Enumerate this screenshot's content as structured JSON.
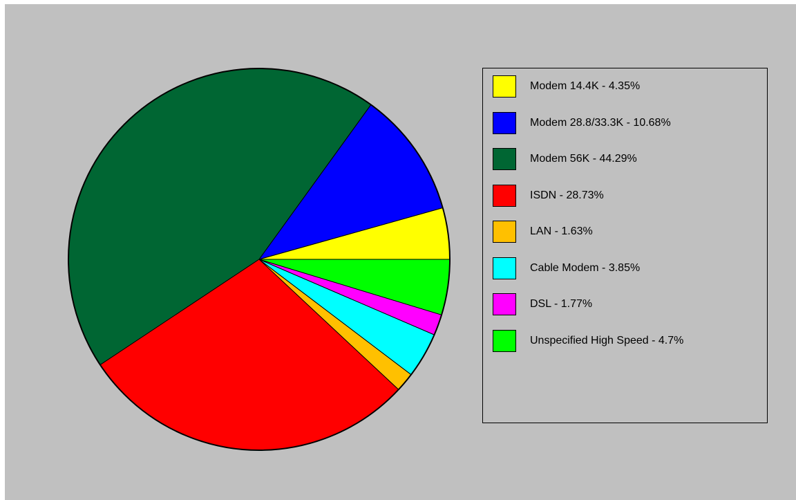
{
  "chart_data": {
    "type": "pie",
    "title": "",
    "slices": [
      {
        "label": "Modem 14.4K - 4.35%",
        "value": 4.35,
        "color": "#ffff00"
      },
      {
        "label": "Modem 28.8/33.3K - 10.68%",
        "value": 10.68,
        "color": "#0000ff"
      },
      {
        "label": "Modem 56K - 44.29%",
        "value": 44.29,
        "color": "#006633"
      },
      {
        "label": "ISDN - 28.73%",
        "value": 28.73,
        "color": "#ff0000"
      },
      {
        "label": "LAN - 1.63%",
        "value": 1.63,
        "color": "#ffc000"
      },
      {
        "label": "Cable Modem - 3.85%",
        "value": 3.85,
        "color": "#00ffff"
      },
      {
        "label": "DSL - 1.77%",
        "value": 1.77,
        "color": "#ff00ff"
      },
      {
        "label": "Unspecified High Speed - 4.7%",
        "value": 4.7,
        "color": "#00ff00"
      }
    ],
    "start_angle_deg": 0,
    "direction": "counterclockwise",
    "legend_position": "right",
    "background_color": "#c0c0c0"
  }
}
